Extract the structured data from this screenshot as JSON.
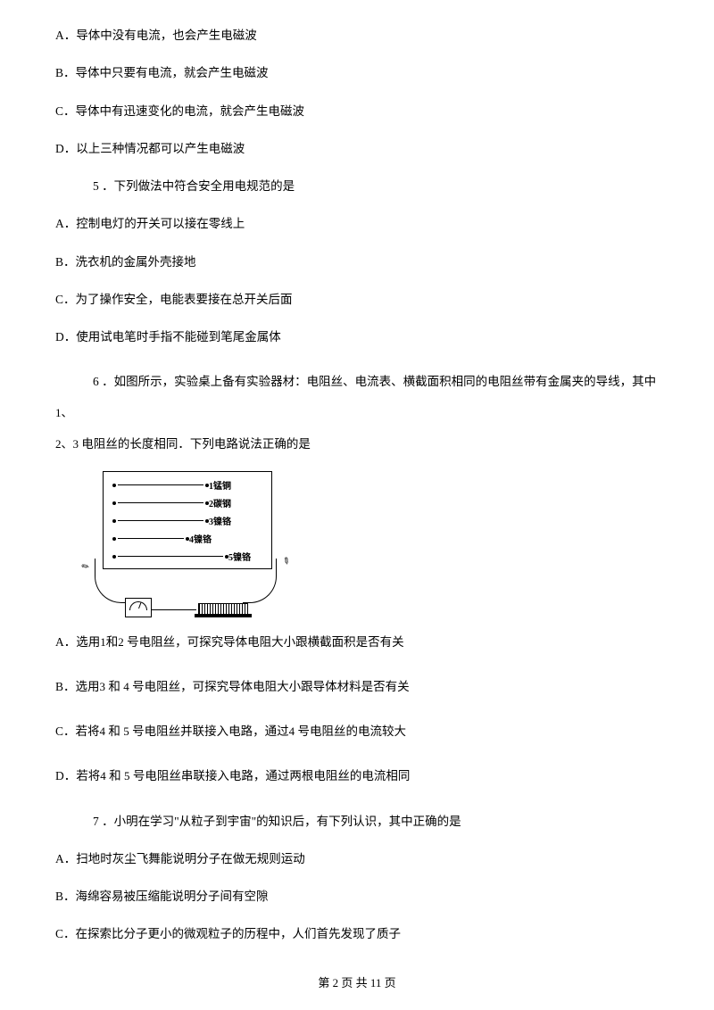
{
  "q4": {
    "a": "A．导体中没有电流，也会产生电磁波",
    "b": "B．导体中只要有电流，就会产生电磁波",
    "c": "C．导体中有迅速变化的电流，就会产生电磁波",
    "d": "D．以上三种情况都可以产生电磁波"
  },
  "q5": {
    "stem": "5 ．下列做法中符合安全用电规范的是",
    "a": "A．控制电灯的开关可以接在零线上",
    "b": "B．洗衣机的金属外壳接地",
    "c": "C．为了操作安全，电能表要接在总开关后面",
    "d": "D．使用试电笔时手指不能碰到笔尾金属体"
  },
  "q6": {
    "stem1": "6 ．如图所示，实验桌上备有实验器材：电阻丝、电流表、横截面积相同的电阻丝带有金属夹的导线，其中",
    "stem2": "1、",
    "stem3": "2、3",
    "stem4": " 电阻丝的长度相同．下列电路说法正确的是",
    "wires": [
      {
        "label": "1锰铜",
        "len": 96
      },
      {
        "label": "2碳钢",
        "len": 96
      },
      {
        "label": "3镍铬",
        "len": 96
      },
      {
        "label": "4镍铬",
        "len": 74
      },
      {
        "label": "5镍铬",
        "len": 118
      }
    ],
    "a_pre": "A．选用",
    "a_mid1": "1",
    "a_mid2": "和",
    "a_mid3": "2",
    "a_post": " 号电阻丝，可探究导体电阻大小跟横截面积是否有关",
    "b_pre": "B．选用",
    "b_mid1": "3",
    "b_mid2": " 和 ",
    "b_mid3": "4",
    "b_post": " 号电阻丝，可探究导体电阻大小跟导体材料是否有关",
    "c_pre": "C．若将",
    "c_mid1": "4",
    "c_mid2": " 和 ",
    "c_mid3": "5",
    "c_mid4": " 号电阻丝并联接入电路，通过",
    "c_mid5": "4",
    "c_post": " 号电阻丝的电流较大",
    "d_pre": "D．若将",
    "d_mid1": "4",
    "d_mid2": " 和 ",
    "d_mid3": "5",
    "d_post": " 号电阻丝串联接入电路，通过两根电阻丝的电流相同"
  },
  "q7": {
    "stem": "7 ．小明在学习\"从粒子到宇宙\"的知识后，有下列认识，其中正确的是",
    "a": "A．扫地时灰尘飞舞能说明分子在做无规则运动",
    "b": "B．海绵容易被压缩能说明分子间有空隙",
    "c": "C．在探索比分子更小的微观粒子的历程中，人们首先发现了质子"
  },
  "footer": {
    "page": "第 2 页 共 11 页"
  }
}
